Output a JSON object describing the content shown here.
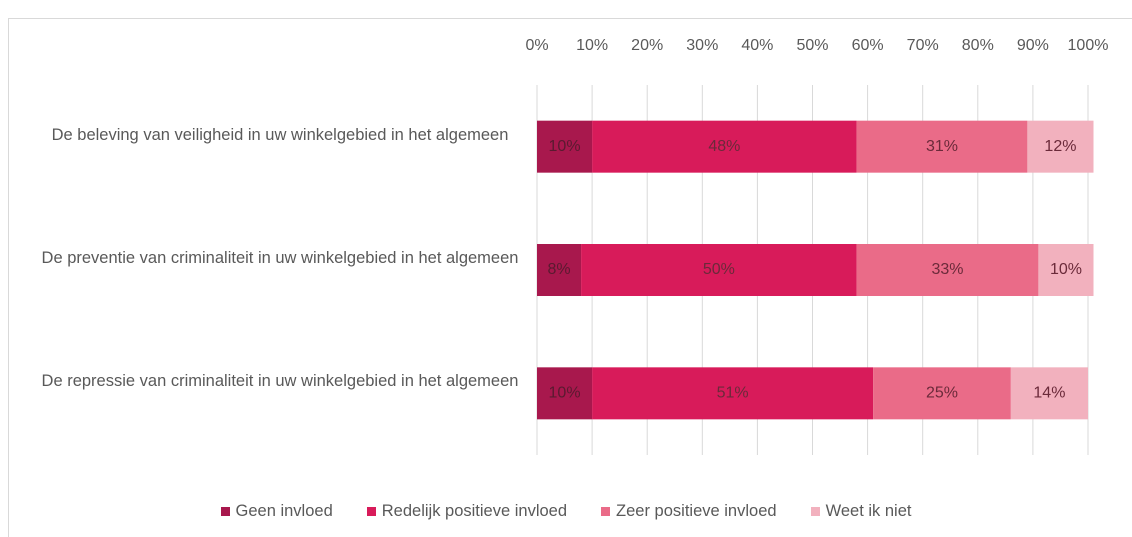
{
  "chart_data": {
    "type": "stacked_bar_horizontal",
    "categories": [
      "De beleving van veiligheid in uw winkelgebied in het algemeen",
      "De preventie van criminaliteit in uw winkelgebied in het algemeen",
      "De repressie van criminaliteit in uw winkelgebied in het algemeen"
    ],
    "series": [
      {
        "name": "Geen invloed",
        "color": "#a8184d",
        "values": [
          10,
          8,
          10
        ],
        "value_labels": [
          "10%",
          "8%",
          "10%"
        ]
      },
      {
        "name": "Redelijk positieve invloed",
        "color": "#d81b5a",
        "values": [
          48,
          50,
          51
        ],
        "value_labels": [
          "48%",
          "50%",
          "51%"
        ]
      },
      {
        "name": "Zeer positieve invloed",
        "color": "#ea6b88",
        "values": [
          31,
          33,
          25
        ],
        "value_labels": [
          "31%",
          "33%",
          "25%"
        ]
      },
      {
        "name": "Weet ik niet",
        "color": "#f2b1be",
        "values": [
          12,
          10,
          14
        ],
        "value_labels": [
          "12%",
          "10%",
          "14%"
        ]
      }
    ],
    "xlim": [
      0,
      100
    ],
    "xticks": [
      {
        "value": 0,
        "label": "0%"
      },
      {
        "value": 10,
        "label": "10%"
      },
      {
        "value": 20,
        "label": "20%"
      },
      {
        "value": 30,
        "label": "30%"
      },
      {
        "value": 40,
        "label": "40%"
      },
      {
        "value": 50,
        "label": "50%"
      },
      {
        "value": 60,
        "label": "60%"
      },
      {
        "value": 70,
        "label": "70%"
      },
      {
        "value": 80,
        "label": "80%"
      },
      {
        "value": 90,
        "label": "90%"
      },
      {
        "value": 100,
        "label": "100%"
      }
    ],
    "grid": true,
    "legend": "bottom"
  }
}
